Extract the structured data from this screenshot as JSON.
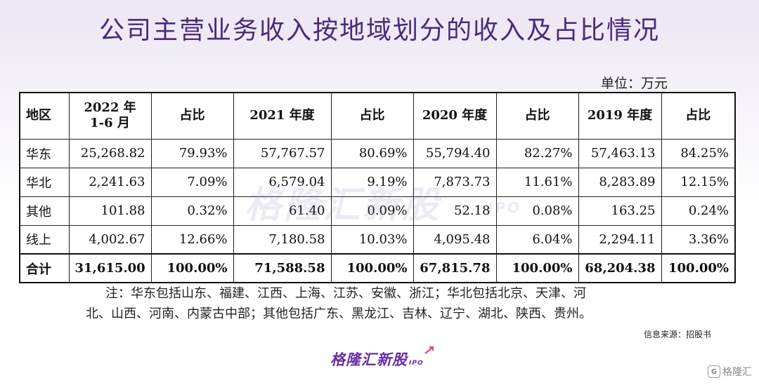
{
  "title": "公司主营业务收入按地域划分的收入及占比情况",
  "unit": "单位：万元",
  "watermark": {
    "text": "格隆汇新股",
    "ipo": "IPO"
  },
  "table": {
    "headers": [
      "地区",
      "2022 年\n1-6 月",
      "占比",
      "2021 年度",
      "占比",
      "2020 年度",
      "占比",
      "2019 年度",
      "占比"
    ],
    "rows": [
      {
        "region": "华东",
        "values": [
          "25,268.82",
          "79.93%",
          "57,767.57",
          "80.69%",
          "55,794.40",
          "82.27%",
          "57,463.13",
          "84.25%"
        ]
      },
      {
        "region": "华北",
        "values": [
          "2,241.63",
          "7.09%",
          "6,579.04",
          "9.19%",
          "7,873.73",
          "11.61%",
          "8,283.89",
          "12.15%"
        ]
      },
      {
        "region": "其他",
        "values": [
          "101.88",
          "0.32%",
          "61.40",
          "0.09%",
          "52.18",
          "0.08%",
          "163.25",
          "0.24%"
        ]
      },
      {
        "region": "线上",
        "values": [
          "4,002.67",
          "12.66%",
          "7,180.58",
          "10.03%",
          "4,095.48",
          "6.04%",
          "2,294.11",
          "3.36%"
        ]
      }
    ],
    "total": {
      "region": "合计",
      "values": [
        "31,615.00",
        "100.00%",
        "71,588.58",
        "100.00%",
        "67,815.78",
        "100.00%",
        "68,204.38",
        "100.00%"
      ]
    }
  },
  "note": {
    "line1": "注：华东包括山东、福建、江西、上海、江苏、安徽、浙江；华北包括北京、天津、河",
    "line2": "北、山西、河南、内蒙古中部；其他包括广东、黑龙江、吉林、辽宁、湖北、陕西、贵州。"
  },
  "source": "信息来源：招股书",
  "logo": {
    "text": "格隆汇新股",
    "ipo": "IPO",
    "color": "#6a2ea8"
  },
  "corner": {
    "text": "格隆汇"
  },
  "colors": {
    "title": "#4b2a7b",
    "accent": "#6a2ea8"
  }
}
